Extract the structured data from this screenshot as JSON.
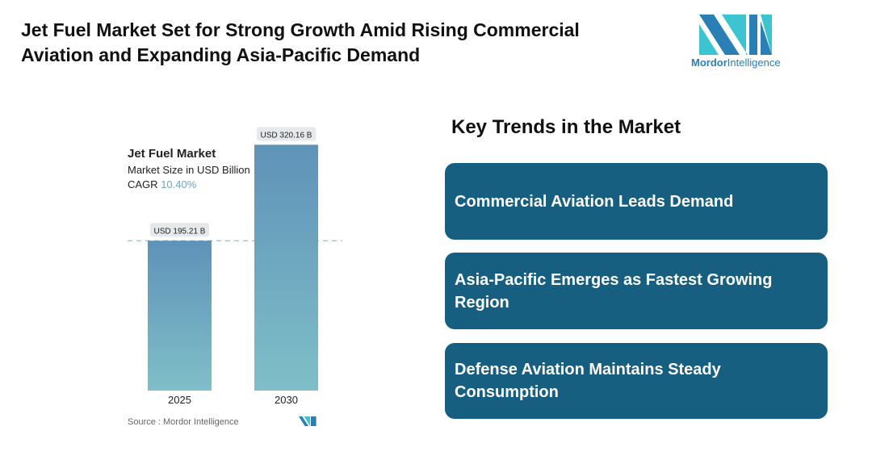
{
  "title": "Jet Fuel Market Set for Strong Growth Amid Rising Commercial Aviation and Expanding Asia-Pacific Demand",
  "logo": {
    "name": "Mordor Intelligence",
    "word1": "Mordor",
    "word2": "Intelligence"
  },
  "chart_data": {
    "type": "bar",
    "title": "Jet Fuel Market",
    "subtitle": "Market Size in USD Billion",
    "cagr_label": "CAGR",
    "cagr_value": "10.40%",
    "categories": [
      "2025",
      "2030"
    ],
    "values": [
      195.21,
      320.16
    ],
    "data_labels": [
      "USD 195.21 B",
      "USD 320.16 B"
    ],
    "ylim": [
      0,
      330
    ],
    "grid": false,
    "reference_line": 195.21,
    "source": "Source :  Mordor Intelligence",
    "colors": {
      "bar_top": "#5f92b8",
      "bar_bottom": "#7fbfc8"
    }
  },
  "trends": {
    "heading": "Key Trends in the Market",
    "items": [
      "Commercial Aviation Leads Demand",
      "Asia-Pacific Emerges as Fastest Growing Region",
      "Defense Aviation Maintains Steady Consumption"
    ],
    "card_color": "#175f80"
  }
}
